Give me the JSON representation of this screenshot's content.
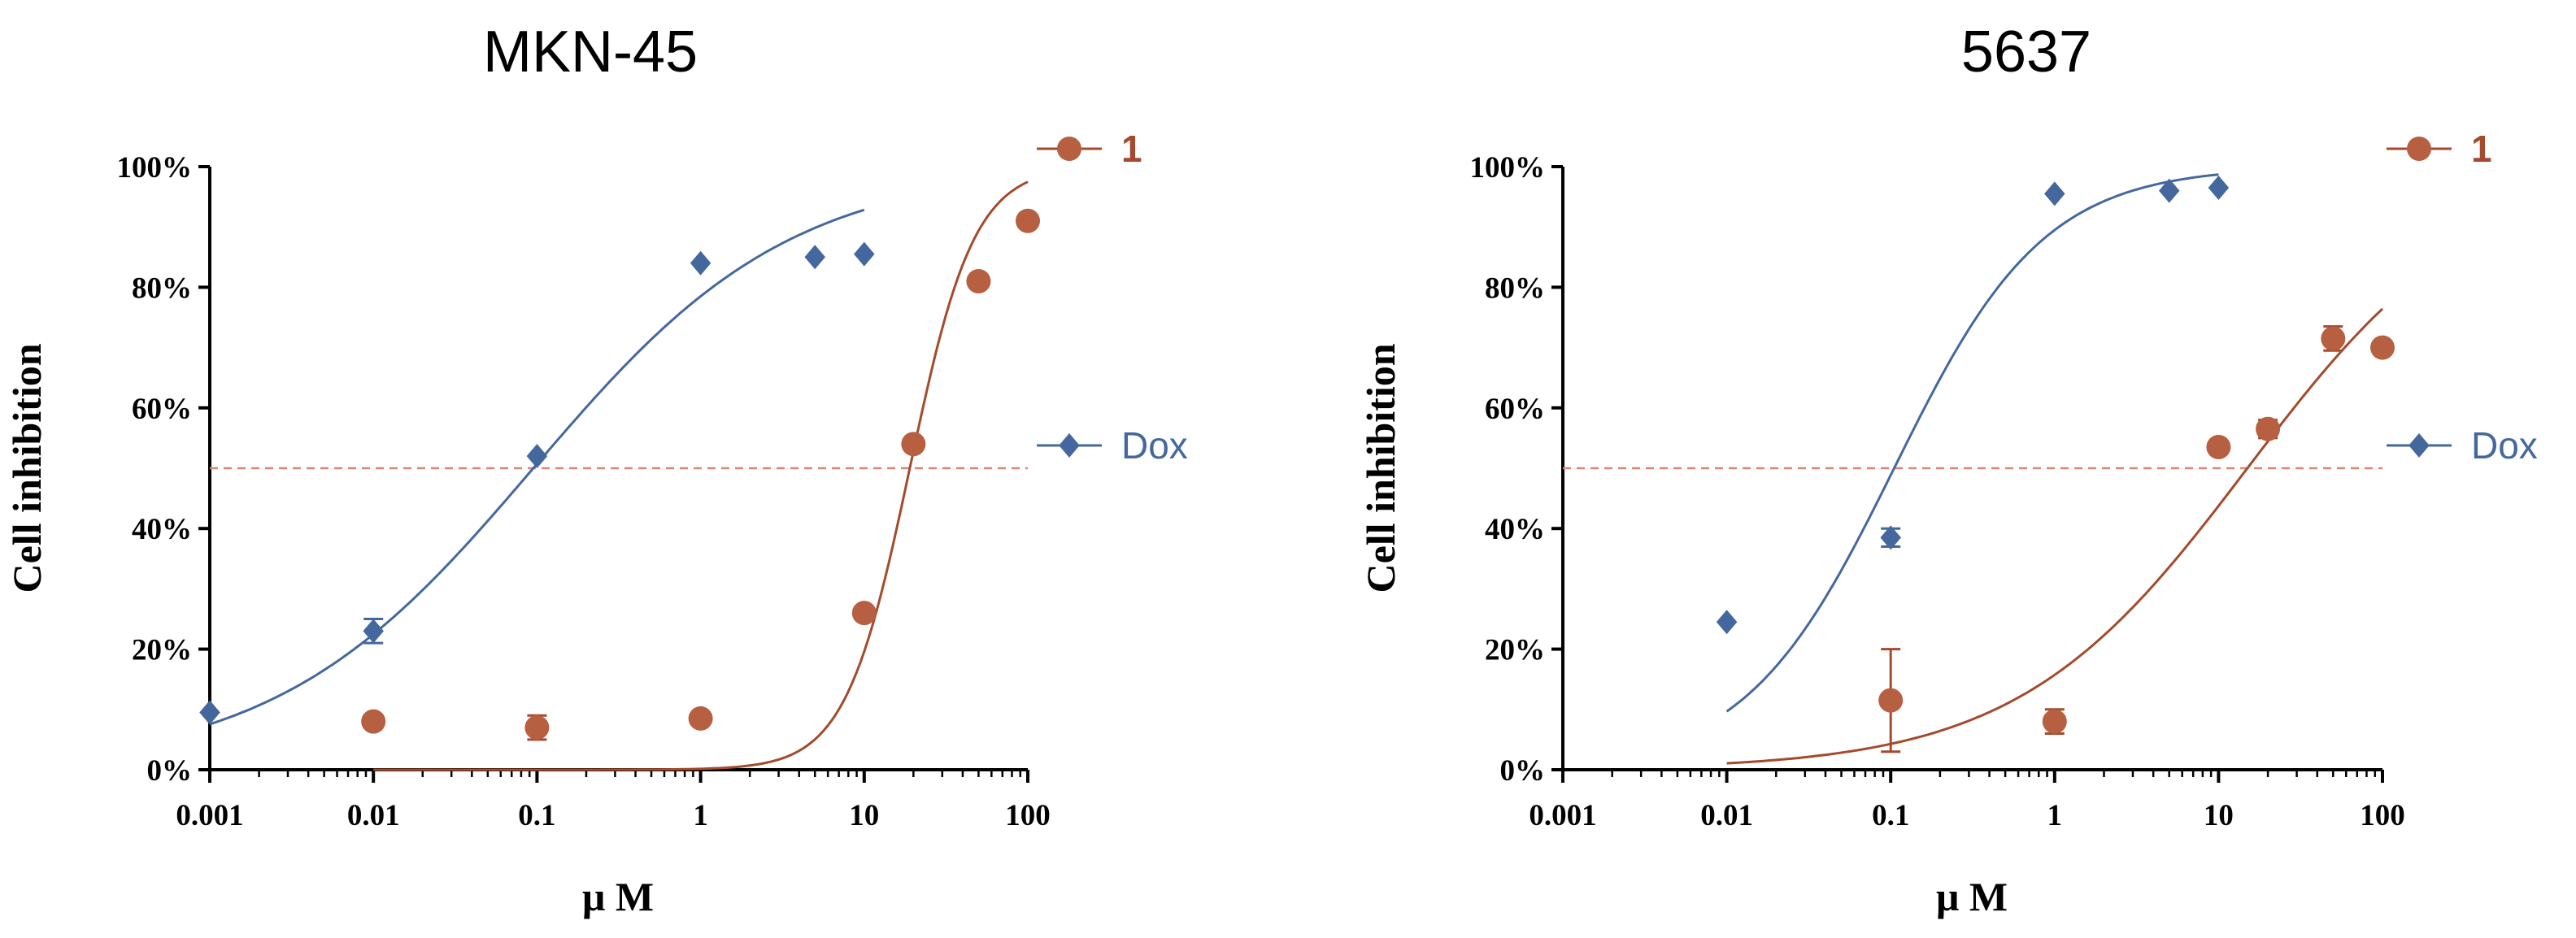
{
  "colors": {
    "dox": "#44689e",
    "compound1": "#a44a2d",
    "compound1_marker": "#b75f41",
    "ref_line": "#d98877",
    "axis": "#000000"
  },
  "chart_data": [
    {
      "type": "scatter",
      "title": "MKN-45",
      "xlabel": "μ M",
      "ylabel": "Cell inhibition",
      "xscale": "log",
      "xlim": [
        0.001,
        100
      ],
      "ylim": [
        0,
        100
      ],
      "x_ticks": [
        0.001,
        0.01,
        0.1,
        1,
        10,
        100
      ],
      "x_tick_labels": [
        "0.001",
        "0.01",
        "0.1",
        "1",
        "10",
        "100"
      ],
      "y_ticks": [
        0,
        20,
        40,
        60,
        80,
        100
      ],
      "y_tick_labels": [
        "0%",
        "20%",
        "40%",
        "60%",
        "80%",
        "100%"
      ],
      "reference_line": {
        "y": 50,
        "style": "dashed"
      },
      "legend": {
        "placement": "right",
        "entries": [
          "1",
          "Dox"
        ]
      },
      "series": [
        {
          "name": "1",
          "marker": "circle",
          "x": [
            0.01,
            0.1,
            1,
            10,
            20,
            50,
            100
          ],
          "y": [
            8,
            7,
            8.5,
            26,
            54,
            81,
            91
          ],
          "error": [
            0,
            2,
            0,
            0,
            0,
            0,
            0
          ],
          "fit": {
            "bottom": 0,
            "top": 100,
            "ec50": 19,
            "hill": 2.2
          }
        },
        {
          "name": "Dox",
          "marker": "diamond",
          "x": [
            0.001,
            0.01,
            0.1,
            1,
            5,
            10
          ],
          "y": [
            9.5,
            23,
            52,
            84,
            85,
            85.5
          ],
          "error": [
            0,
            2,
            0,
            0,
            0,
            0
          ],
          "fit": {
            "bottom": 0,
            "top": 100,
            "ec50": 0.095,
            "hill": 0.55
          }
        }
      ]
    },
    {
      "type": "scatter",
      "title": "5637",
      "xlabel": "μ M",
      "ylabel": "Cell inhibition",
      "xscale": "log",
      "xlim": [
        0.001,
        100
      ],
      "ylim": [
        0,
        100
      ],
      "x_ticks": [
        0.001,
        0.01,
        0.1,
        1,
        10,
        100
      ],
      "x_tick_labels": [
        "0.001",
        "0.01",
        "0.1",
        "1",
        "10",
        "100"
      ],
      "y_ticks": [
        0,
        20,
        40,
        60,
        80,
        100
      ],
      "y_tick_labels": [
        "0%",
        "20%",
        "40%",
        "60%",
        "80%",
        "100%"
      ],
      "reference_line": {
        "y": 50,
        "style": "dashed"
      },
      "legend": {
        "placement": "right",
        "entries": [
          "1",
          "Dox"
        ]
      },
      "series": [
        {
          "name": "1",
          "marker": "circle",
          "x": [
            0.1,
            1,
            10,
            20,
            50,
            100
          ],
          "y": [
            11.5,
            8,
            53.5,
            56.5,
            71.5,
            70
          ],
          "error": [
            8.5,
            2,
            0,
            1.5,
            2,
            0
          ],
          "fit": {
            "bottom": 0,
            "top": 100,
            "ec50": 15,
            "hill": 0.62,
            "x_from": 0.01
          }
        },
        {
          "name": "Dox",
          "marker": "diamond",
          "x": [
            0.01,
            0.1,
            1,
            5,
            10
          ],
          "y": [
            24.5,
            38.5,
            95.5,
            96,
            96.5
          ],
          "error": [
            0,
            1.5,
            0,
            0,
            0
          ],
          "fit": {
            "bottom": 0,
            "top": 100,
            "ec50": 0.105,
            "hill": 0.95
          }
        }
      ]
    }
  ]
}
